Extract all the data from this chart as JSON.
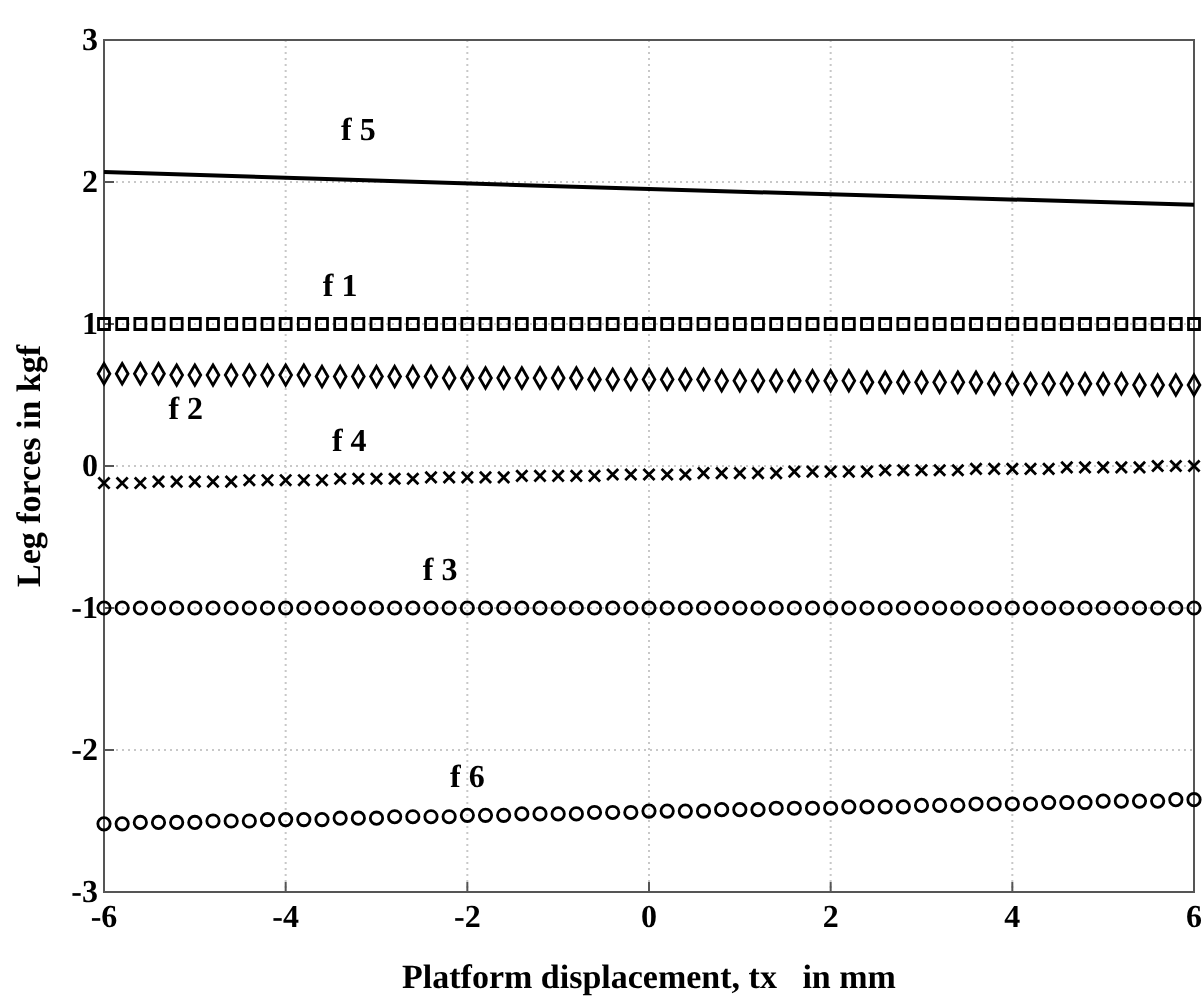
{
  "chart_data": {
    "type": "scatter",
    "xlabel": "Platform displacement, tx   in mm",
    "ylabel": "Leg forces  in kgf",
    "xlim": [
      -6,
      6
    ],
    "ylim": [
      -3,
      3
    ],
    "xticks": [
      -6,
      -4,
      -2,
      0,
      2,
      4,
      6
    ],
    "yticks": [
      -3,
      -2,
      -1,
      0,
      1,
      2,
      3
    ],
    "grid": true,
    "x": [
      -6,
      -5.8,
      -5.6,
      -5.4,
      -5.2,
      -5,
      -4.8,
      -4.6,
      -4.4,
      -4.2,
      -4,
      -3.8,
      -3.6,
      -3.4,
      -3.2,
      -3,
      -2.8,
      -2.6,
      -2.4,
      -2.2,
      -2,
      -1.8,
      -1.6,
      -1.4,
      -1.2,
      -1,
      -0.8,
      -0.6,
      -0.4,
      -0.2,
      0,
      0.2,
      0.4,
      0.6,
      0.8,
      1,
      1.2,
      1.4,
      1.6,
      1.8,
      2,
      2.2,
      2.4,
      2.6,
      2.8,
      3,
      3.2,
      3.4,
      3.6,
      3.8,
      4,
      4.2,
      4.4,
      4.6,
      4.8,
      5,
      5.2,
      5.4,
      5.6,
      5.8,
      6
    ],
    "series": [
      {
        "name": "f 1",
        "color": "#000000",
        "marker": "square",
        "values": [
          1,
          1,
          1,
          1,
          1,
          1,
          1,
          1,
          1,
          1,
          1,
          1,
          1,
          1,
          1,
          1,
          1,
          1,
          1,
          1,
          1,
          1,
          1,
          1,
          1,
          1,
          1,
          1,
          1,
          1,
          1,
          1,
          1,
          1,
          1,
          1,
          1,
          1,
          1,
          1,
          1,
          1,
          1,
          1,
          1,
          1,
          1,
          1,
          1,
          1,
          1,
          1,
          1,
          1,
          1,
          1,
          1,
          1,
          1,
          1,
          1
        ]
      },
      {
        "name": "f 2",
        "color": "#000000",
        "marker": "diamond",
        "values": [
          0.65,
          0.65,
          0.65,
          0.65,
          0.64,
          0.64,
          0.64,
          0.64,
          0.64,
          0.64,
          0.64,
          0.64,
          0.63,
          0.63,
          0.63,
          0.63,
          0.63,
          0.63,
          0.63,
          0.62,
          0.62,
          0.62,
          0.62,
          0.62,
          0.62,
          0.62,
          0.62,
          0.61,
          0.61,
          0.61,
          0.61,
          0.61,
          0.61,
          0.61,
          0.6,
          0.6,
          0.6,
          0.6,
          0.6,
          0.6,
          0.6,
          0.6,
          0.59,
          0.59,
          0.59,
          0.59,
          0.59,
          0.59,
          0.59,
          0.58,
          0.58,
          0.58,
          0.58,
          0.58,
          0.58,
          0.58,
          0.58,
          0.57,
          0.57,
          0.57,
          0.57
        ]
      },
      {
        "name": "f 3",
        "color": "#000000",
        "marker": "circle",
        "values": [
          -1,
          -1,
          -1,
          -1,
          -1,
          -1,
          -1,
          -1,
          -1,
          -1,
          -1,
          -1,
          -1,
          -1,
          -1,
          -1,
          -1,
          -1,
          -1,
          -1,
          -1,
          -1,
          -1,
          -1,
          -1,
          -1,
          -1,
          -1,
          -1,
          -1,
          -1,
          -1,
          -1,
          -1,
          -1,
          -1,
          -1,
          -1,
          -1,
          -1,
          -1,
          -1,
          -1,
          -1,
          -1,
          -1,
          -1,
          -1,
          -1,
          -1,
          -1,
          -1,
          -1,
          -1,
          -1,
          -1,
          -1,
          -1,
          -1,
          -1,
          -1
        ]
      },
      {
        "name": "f 4",
        "color": "#000000",
        "marker": "cross",
        "values": [
          -0.12,
          -0.12,
          -0.12,
          -0.11,
          -0.11,
          -0.11,
          -0.11,
          -0.11,
          -0.1,
          -0.1,
          -0.1,
          -0.1,
          -0.1,
          -0.09,
          -0.09,
          -0.09,
          -0.09,
          -0.09,
          -0.08,
          -0.08,
          -0.08,
          -0.08,
          -0.08,
          -0.07,
          -0.07,
          -0.07,
          -0.07,
          -0.07,
          -0.06,
          -0.06,
          -0.06,
          -0.06,
          -0.06,
          -0.05,
          -0.05,
          -0.05,
          -0.05,
          -0.05,
          -0.04,
          -0.04,
          -0.04,
          -0.04,
          -0.04,
          -0.03,
          -0.03,
          -0.03,
          -0.03,
          -0.03,
          -0.02,
          -0.02,
          -0.02,
          -0.02,
          -0.02,
          -0.01,
          -0.01,
          -0.01,
          -0.01,
          -0.01,
          0,
          0,
          0
        ]
      },
      {
        "name": "f 5",
        "type": "line",
        "color": "#000000",
        "marker": "none",
        "line_style": "solid",
        "x": [
          -6,
          0,
          6
        ],
        "values": [
          2.07,
          1.95,
          1.84
        ]
      },
      {
        "name": "f 6",
        "color": "#000000",
        "marker": "circle",
        "values": [
          -2.52,
          -2.52,
          -2.51,
          -2.51,
          -2.51,
          -2.51,
          -2.5,
          -2.5,
          -2.5,
          -2.49,
          -2.49,
          -2.49,
          -2.49,
          -2.48,
          -2.48,
          -2.48,
          -2.47,
          -2.47,
          -2.47,
          -2.47,
          -2.46,
          -2.46,
          -2.46,
          -2.45,
          -2.45,
          -2.45,
          -2.45,
          -2.44,
          -2.44,
          -2.44,
          -2.43,
          -2.43,
          -2.43,
          -2.43,
          -2.42,
          -2.42,
          -2.42,
          -2.41,
          -2.41,
          -2.41,
          -2.41,
          -2.4,
          -2.4,
          -2.4,
          -2.4,
          -2.39,
          -2.39,
          -2.39,
          -2.38,
          -2.38,
          -2.38,
          -2.38,
          -2.37,
          -2.37,
          -2.37,
          -2.36,
          -2.36,
          -2.36,
          -2.36,
          -2.35,
          -2.35
        ]
      }
    ]
  }
}
